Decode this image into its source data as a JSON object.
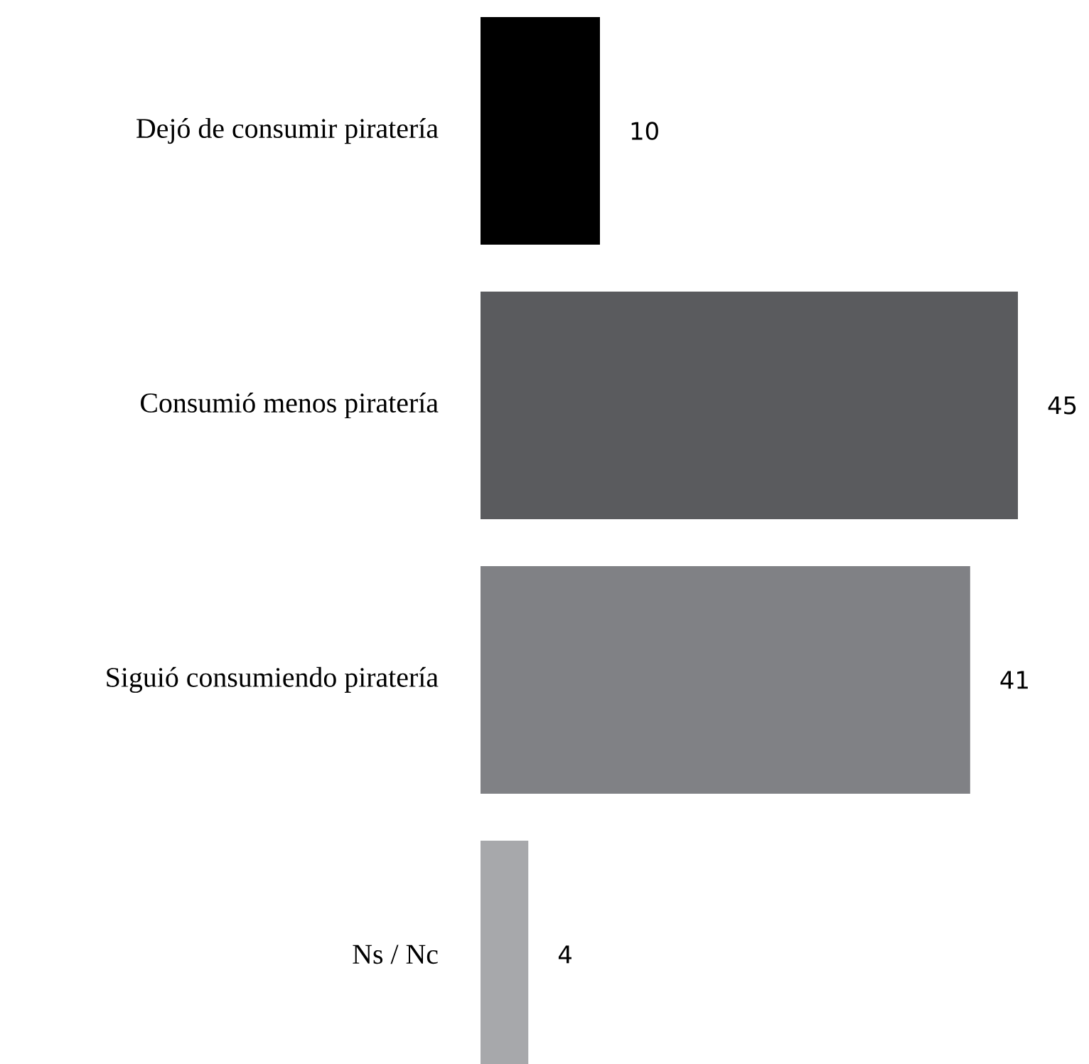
{
  "chart_data": {
    "type": "bar",
    "orientation": "horizontal",
    "categories": [
      "Dejó de consumir piratería",
      "Consumió menos piratería",
      "Siguió consumiendo piratería",
      "Ns / Nc"
    ],
    "values": [
      10,
      45,
      41,
      4
    ],
    "colors": [
      "#000000",
      "#5a5b5e",
      "#808185",
      "#a7a8ab"
    ],
    "data_labels": true
  }
}
